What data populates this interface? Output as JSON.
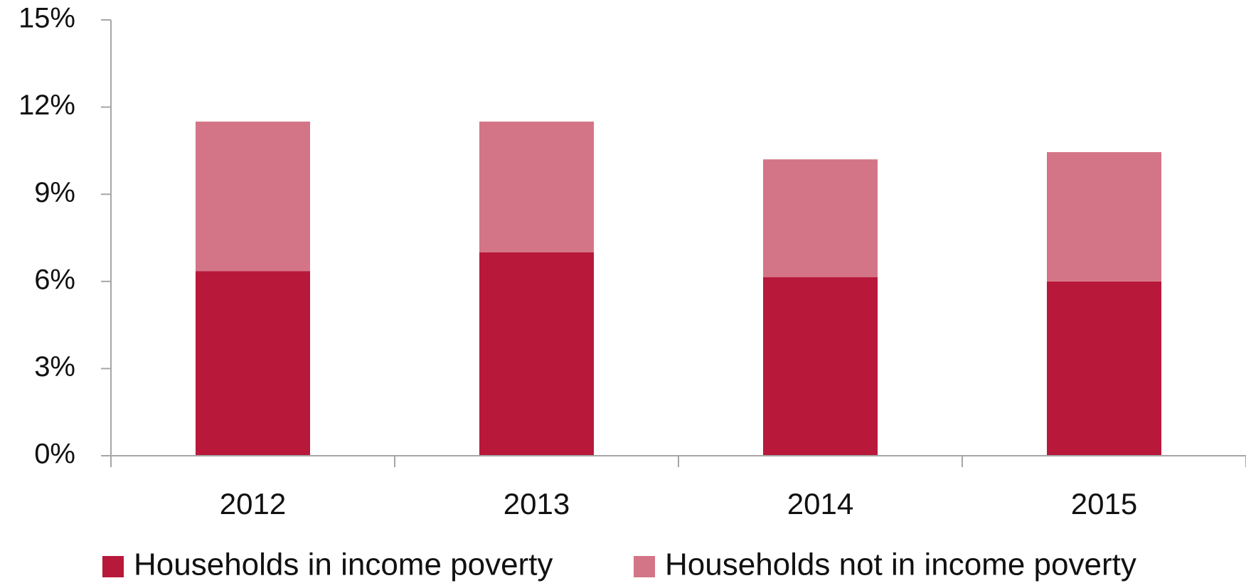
{
  "chart_data": {
    "type": "bar",
    "stacked": true,
    "categories": [
      "2012",
      "2013",
      "2014",
      "2015"
    ],
    "series": [
      {
        "name": "Households in income poverty",
        "values": [
          6.35,
          7.0,
          6.15,
          6.0
        ],
        "color": "#b8183a"
      },
      {
        "name": "Households not in income poverty",
        "values": [
          5.15,
          4.5,
          4.05,
          4.45
        ],
        "color": "#d37586"
      }
    ],
    "y_ticks": [
      "0%",
      "3%",
      "6%",
      "9%",
      "12%",
      "15%"
    ],
    "ylim": [
      0,
      15
    ],
    "y_tick_values": [
      0,
      3,
      6,
      9,
      12,
      15
    ],
    "grid": false,
    "legend": "bottom",
    "axis_color": "#a6a6a6"
  }
}
